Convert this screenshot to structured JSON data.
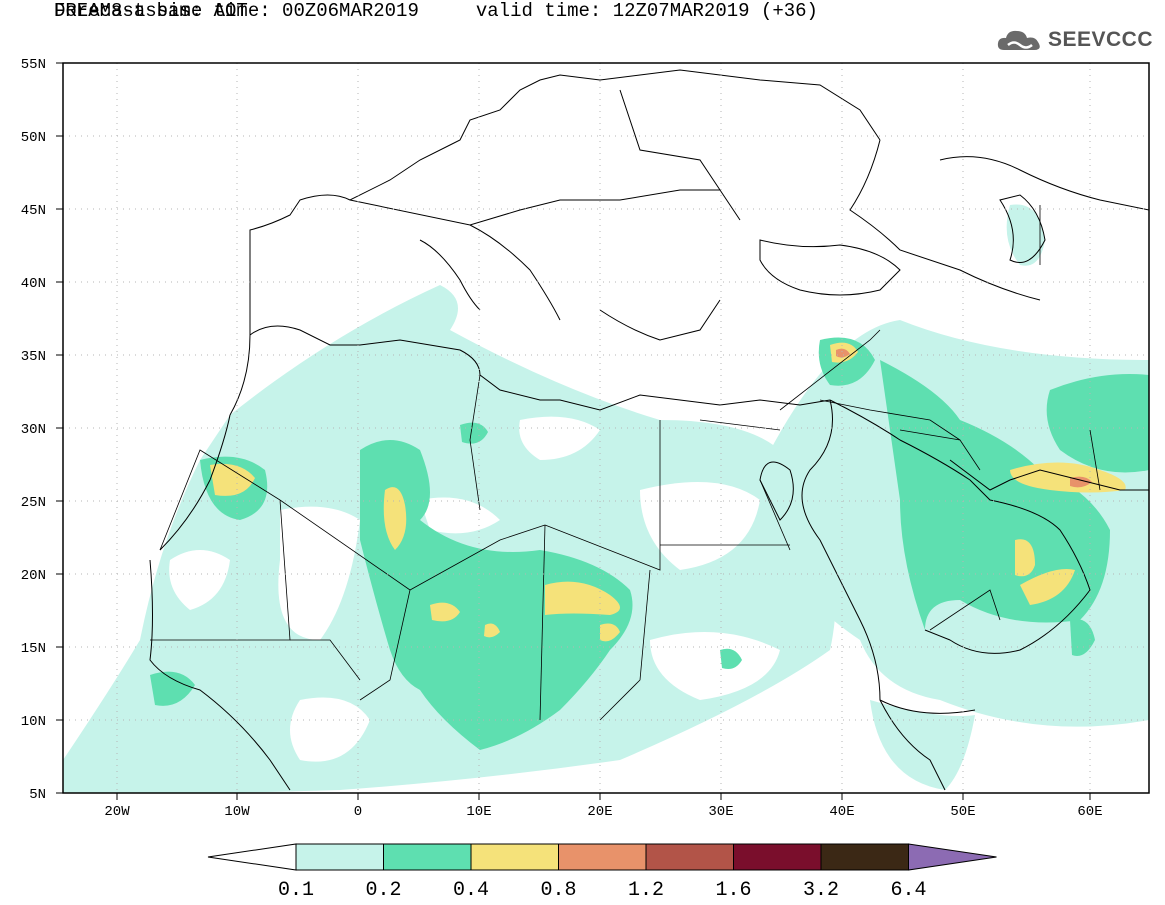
{
  "header": {
    "title": "DREAM8-assim: AOT",
    "base_label": "Forecast base time: 00Z06MAR2019",
    "valid_label": "valid time: 12Z07MAR2019 (+36)",
    "logo_text": "SEEVCCC"
  },
  "axes": {
    "lat_labels": [
      "55N",
      "50N",
      "45N",
      "40N",
      "35N",
      "30N",
      "25N",
      "20N",
      "15N",
      "10N",
      "5N"
    ],
    "lon_labels": [
      "20W",
      "10W",
      "0",
      "10E",
      "20E",
      "30E",
      "40E",
      "50E",
      "60E"
    ]
  },
  "legend": {
    "colors": [
      "#c6f3ea",
      "#5edfb0",
      "#f5e27a",
      "#e8926a",
      "#b25448",
      "#7a0e2c",
      "#3b2815",
      "#8c6bb3"
    ],
    "labels": [
      "0.1",
      "0.2",
      "0.4",
      "0.8",
      "1.2",
      "1.6",
      "3.2",
      "6.4"
    ]
  }
}
